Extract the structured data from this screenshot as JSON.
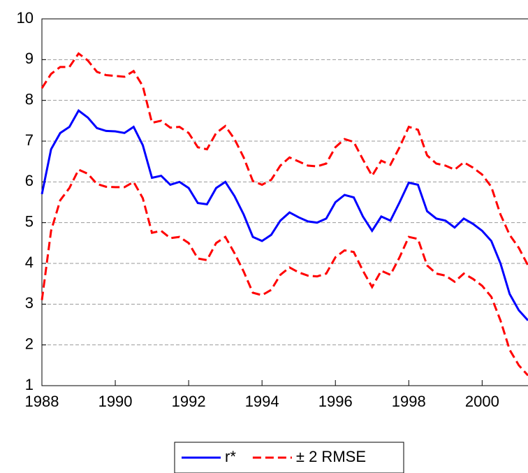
{
  "chart_data": {
    "type": "line",
    "x": [
      1988,
      1988.25,
      1988.5,
      1988.75,
      1989,
      1989.25,
      1989.5,
      1989.75,
      1990,
      1990.25,
      1990.5,
      1990.75,
      1991,
      1991.25,
      1991.5,
      1991.75,
      1992,
      1992.25,
      1992.5,
      1992.75,
      1993,
      1993.25,
      1993.5,
      1993.75,
      1994,
      1994.25,
      1994.5,
      1994.75,
      1995,
      1995.25,
      1995.5,
      1995.75,
      1996,
      1996.25,
      1996.5,
      1996.75,
      1997,
      1997.25,
      1997.5,
      1997.75,
      1998,
      1998.25,
      1998.5,
      1998.75,
      1999,
      1999.25,
      1999.5,
      1999.75,
      2000,
      2000.25,
      2000.5,
      2000.75,
      2001,
      2001.25
    ],
    "series": [
      {
        "name": "r*",
        "color": "#0000ff",
        "values": [
          5.7,
          6.8,
          7.2,
          7.35,
          7.75,
          7.58,
          7.32,
          7.25,
          7.24,
          7.2,
          7.35,
          6.9,
          6.1,
          6.15,
          5.93,
          6.0,
          5.85,
          5.48,
          5.45,
          5.85,
          6.0,
          5.65,
          5.2,
          4.65,
          4.55,
          4.7,
          5.05,
          5.25,
          5.13,
          5.03,
          5.0,
          5.1,
          5.5,
          5.68,
          5.62,
          5.15,
          4.8,
          5.15,
          5.05,
          5.5,
          5.98,
          5.93,
          5.28,
          5.1,
          5.05,
          4.88,
          5.1,
          4.97,
          4.8,
          4.55,
          4.0,
          3.25,
          2.85,
          2.6
        ]
      },
      {
        "name": "± 2 RMSE",
        "color": "#ff0000",
        "upper": [
          8.3,
          8.65,
          8.82,
          8.82,
          9.15,
          8.98,
          8.7,
          8.62,
          8.6,
          8.58,
          8.72,
          8.35,
          7.45,
          7.5,
          7.33,
          7.35,
          7.2,
          6.85,
          6.8,
          7.2,
          7.37,
          7.05,
          6.6,
          6.02,
          5.93,
          6.05,
          6.4,
          6.6,
          6.5,
          6.4,
          6.38,
          6.45,
          6.85,
          7.05,
          6.98,
          6.55,
          6.15,
          6.52,
          6.42,
          6.85,
          7.35,
          7.28,
          6.65,
          6.45,
          6.4,
          6.3,
          6.48,
          6.35,
          6.18,
          5.88,
          5.2,
          4.7,
          4.38,
          3.95
        ],
        "lower": [
          3.1,
          4.8,
          5.55,
          5.85,
          6.3,
          6.2,
          5.95,
          5.88,
          5.87,
          5.87,
          6.0,
          5.6,
          4.75,
          4.8,
          4.62,
          4.65,
          4.5,
          4.12,
          4.08,
          4.5,
          4.65,
          4.25,
          3.8,
          3.28,
          3.22,
          3.35,
          3.72,
          3.9,
          3.78,
          3.7,
          3.68,
          3.75,
          4.15,
          4.32,
          4.28,
          3.82,
          3.42,
          3.82,
          3.72,
          4.15,
          4.65,
          4.6,
          3.95,
          3.75,
          3.7,
          3.55,
          3.75,
          3.62,
          3.45,
          3.18,
          2.6,
          1.88,
          1.5,
          1.25
        ]
      }
    ],
    "xlim": [
      1988,
      2001.25
    ],
    "xticks": [
      1988,
      1990,
      1992,
      1994,
      1996,
      1998,
      2000
    ],
    "ylim": [
      1,
      10
    ],
    "yticks": [
      1,
      2,
      3,
      4,
      5,
      6,
      7,
      8,
      9,
      10
    ],
    "grid": true,
    "legend": "bottom"
  }
}
